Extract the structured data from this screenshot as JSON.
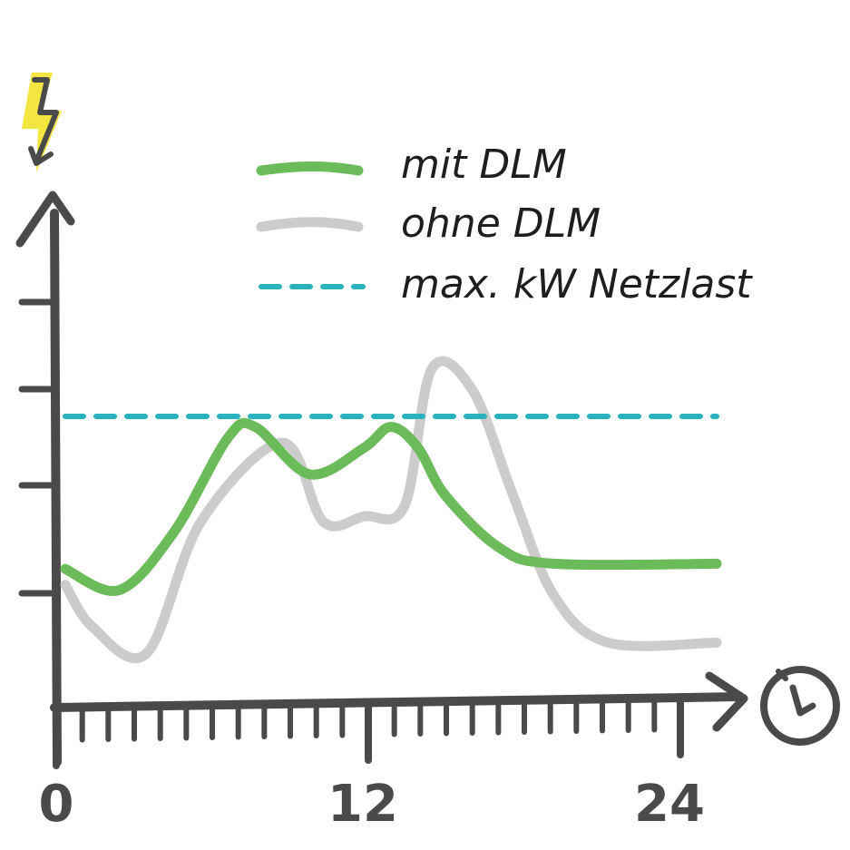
{
  "chart_data": {
    "type": "line",
    "x_tick_labels": [
      "0",
      "12",
      "24"
    ],
    "xlim": [
      0,
      24
    ],
    "ylim": [
      0,
      10
    ],
    "grid": false,
    "legend_placement": "top",
    "x_axis_icon": "clock-icon",
    "y_axis_icon": "lightning-bolt-icon",
    "series": [
      {
        "name": "mit DLM",
        "color": "#6cbb5a",
        "style": "solid",
        "x": [
          0,
          2,
          4,
          6,
          7,
          9,
          11,
          12,
          13,
          14,
          16,
          18,
          24
        ],
        "y": [
          2.6,
          2.2,
          3.3,
          5.1,
          5.3,
          4.4,
          4.9,
          5.3,
          4.9,
          4.0,
          3.0,
          2.7,
          2.7
        ]
      },
      {
        "name": "ohne DLM",
        "color": "#cccccc",
        "style": "solid",
        "x": [
          0,
          1,
          3,
          5,
          8,
          9.5,
          11,
          12.5,
          13.5,
          15,
          16.5,
          18,
          20,
          24
        ],
        "y": [
          2.3,
          1.5,
          1.0,
          3.5,
          5.0,
          3.5,
          3.6,
          3.8,
          6.4,
          6.0,
          4.0,
          2.1,
          1.2,
          1.2
        ]
      },
      {
        "name": "max. kW Netzlast",
        "color": "#2ab3bf",
        "style": "dashed",
        "x": [
          0,
          24
        ],
        "y": [
          5.5,
          5.5
        ]
      }
    ]
  }
}
